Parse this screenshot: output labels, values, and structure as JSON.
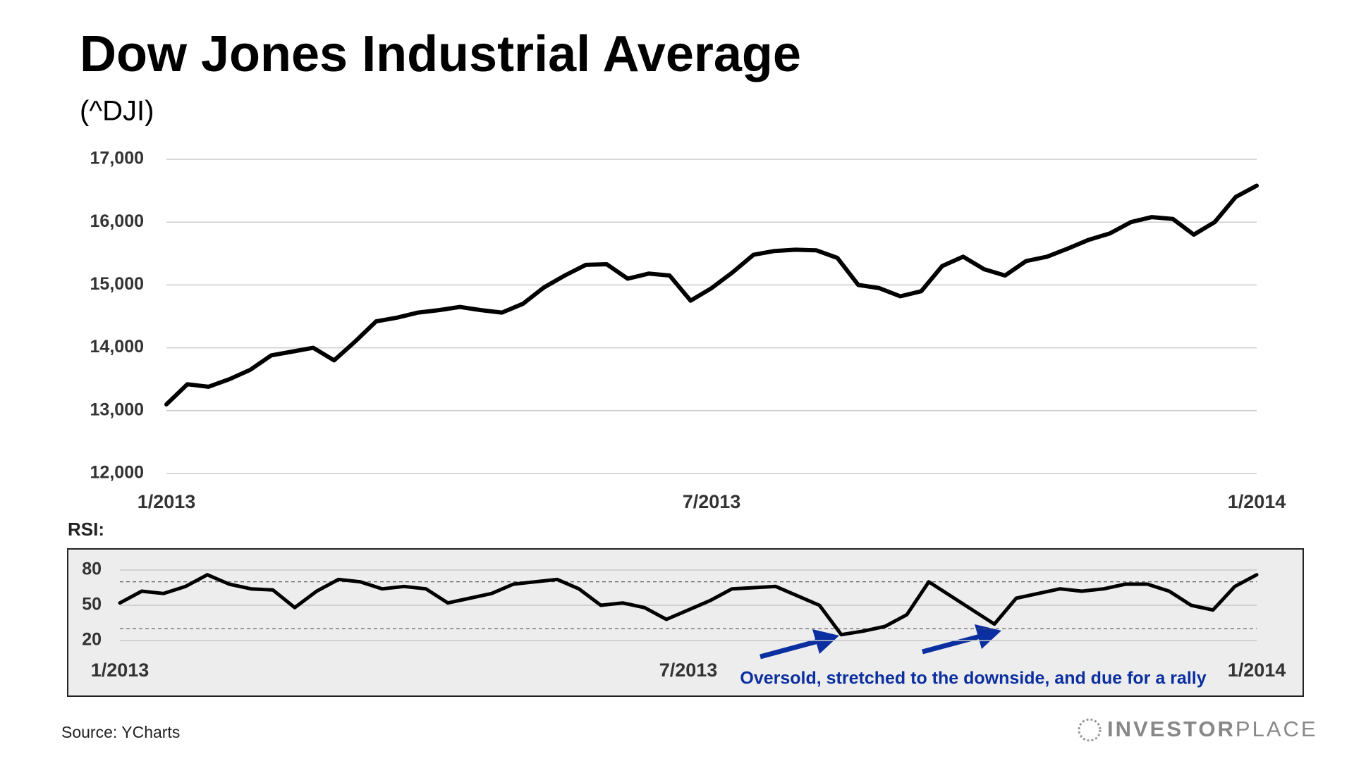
{
  "chart_data": [
    {
      "type": "line",
      "title": "Dow Jones Industrial Average",
      "subtitle": "(^DJI)",
      "categories": [
        "1/2013",
        null,
        null,
        null,
        null,
        null,
        null,
        null,
        null,
        null,
        null,
        null,
        null,
        null,
        null,
        null,
        null,
        null,
        null,
        null,
        null,
        null,
        null,
        null,
        null,
        null,
        "7/2013",
        null,
        null,
        null,
        null,
        null,
        null,
        null,
        null,
        null,
        null,
        null,
        null,
        null,
        null,
        null,
        null,
        null,
        null,
        null,
        null,
        null,
        null,
        null,
        null,
        null,
        "1/2014"
      ],
      "values": [
        13100,
        13420,
        13380,
        13500,
        13650,
        13880,
        13940,
        14000,
        13800,
        14100,
        14420,
        14480,
        14560,
        14600,
        14650,
        14600,
        14560,
        14700,
        14960,
        15150,
        15320,
        15330,
        15100,
        15180,
        15150,
        14750,
        14950,
        15200,
        15480,
        15540,
        15560,
        15550,
        15430,
        15000,
        14950,
        14820,
        14900,
        15300,
        15450,
        15250,
        15150,
        15380,
        15450,
        15580,
        15720,
        15820,
        16000,
        16080,
        16050,
        15800,
        16000,
        16400,
        16580
      ],
      "color": "#000000",
      "ylim": [
        12000,
        17000
      ],
      "yticks": [
        {
          "value": 12000,
          "label": "12,000"
        },
        {
          "value": 13000,
          "label": "13,000"
        },
        {
          "value": 14000,
          "label": "14,000"
        },
        {
          "value": 15000,
          "label": "15,000"
        },
        {
          "value": 16000,
          "label": "16,000"
        },
        {
          "value": 17000,
          "label": "17,000"
        }
      ],
      "grid": true
    },
    {
      "type": "line",
      "title": "RSI:",
      "categories": [
        "1/2013",
        null,
        null,
        null,
        null,
        null,
        null,
        null,
        null,
        null,
        null,
        null,
        null,
        null,
        null,
        null,
        null,
        null,
        null,
        null,
        null,
        null,
        null,
        null,
        null,
        null,
        "7/2013",
        null,
        null,
        null,
        null,
        null,
        null,
        null,
        null,
        null,
        null,
        null,
        null,
        null,
        null,
        null,
        null,
        null,
        null,
        null,
        null,
        null,
        null,
        null,
        null,
        null,
        "1/2014"
      ],
      "values": [
        52,
        62,
        60,
        66,
        76,
        68,
        64,
        63,
        48,
        62,
        72,
        70,
        64,
        66,
        64,
        52,
        56,
        60,
        68,
        70,
        72,
        64,
        50,
        52,
        48,
        38,
        46,
        54,
        64,
        65,
        66,
        58,
        50,
        25,
        28,
        32,
        42,
        70,
        58,
        46,
        34,
        56,
        60,
        64,
        62,
        64,
        68,
        68,
        62,
        50,
        46,
        66,
        76
      ],
      "color": "#000000",
      "ylim": [
        14,
        86
      ],
      "yticks": [
        20,
        50,
        80
      ],
      "reference_lines": [
        30,
        70
      ],
      "grid": true,
      "annotation": "Oversold, stretched to the downside, and due for a rally",
      "annotation_color": "#0b2fa0"
    }
  ],
  "source": "Source: YCharts",
  "logo": [
    "INVESTOR",
    "PLACE"
  ]
}
